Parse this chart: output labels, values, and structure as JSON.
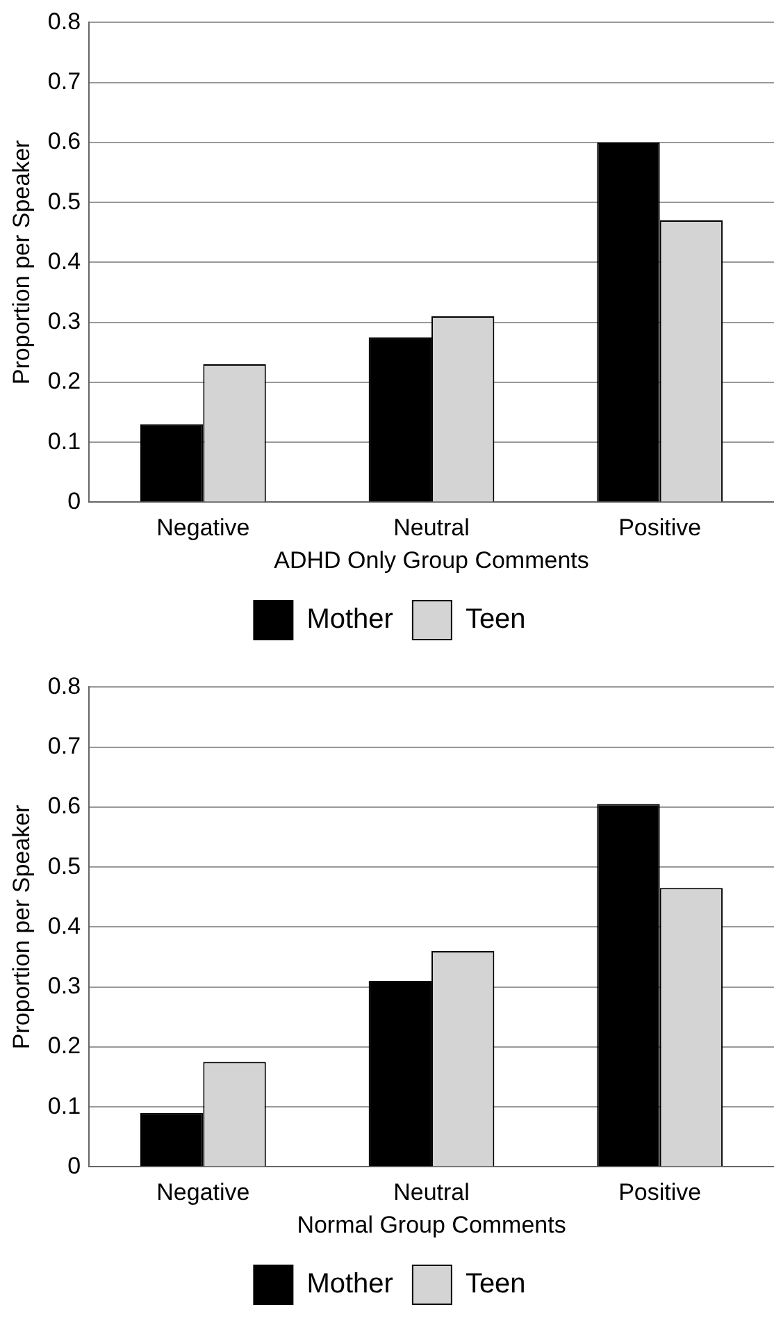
{
  "chart_data": [
    {
      "type": "bar",
      "xlabel": "ADHD Only Group Comments",
      "ylabel": "Proportion per Speaker",
      "categories": [
        "Negative",
        "Neutral",
        "Positive"
      ],
      "series": [
        {
          "name": "Mother",
          "color": "#000000",
          "values": [
            0.13,
            0.275,
            0.6
          ]
        },
        {
          "name": "Teen",
          "color": "#d4d4d4",
          "values": [
            0.23,
            0.31,
            0.47
          ]
        }
      ],
      "ylim": [
        0,
        0.8
      ],
      "yticks": [
        0,
        0.1,
        0.2,
        0.3,
        0.4,
        0.5,
        0.6,
        0.7,
        0.8
      ],
      "grid": "y",
      "legend": "bottom"
    },
    {
      "type": "bar",
      "xlabel": "Normal Group Comments",
      "ylabel": "Proportion per Speaker",
      "categories": [
        "Negative",
        "Neutral",
        "Positive"
      ],
      "series": [
        {
          "name": "Mother",
          "color": "#000000",
          "values": [
            0.09,
            0.31,
            0.605
          ]
        },
        {
          "name": "Teen",
          "color": "#d4d4d4",
          "values": [
            0.175,
            0.36,
            0.465
          ]
        }
      ],
      "ylim": [
        0,
        0.8
      ],
      "yticks": [
        0,
        0.1,
        0.2,
        0.3,
        0.4,
        0.5,
        0.6,
        0.7,
        0.8
      ],
      "grid": "y",
      "legend": "bottom"
    }
  ]
}
